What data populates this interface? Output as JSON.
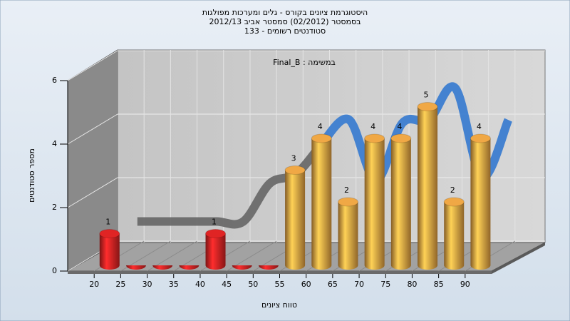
{
  "chart_data": {
    "type": "bar3d",
    "title_lines": [
      "היסטוגרמת ציונים בקורס - גלים ומערכות מפולגות",
      "בסמסטר (02/2012) סמסטר אביב 2012/13",
      "סטודנטים רשומים - 133"
    ],
    "annotation": "במשימה : Final_B",
    "x_label": "טווח ציונים",
    "y_label": "מספר סטודנטים",
    "categories": [
      "20",
      "25",
      "30",
      "35",
      "40",
      "45",
      "50",
      "55",
      "60",
      "65",
      "70",
      "75",
      "80",
      "85",
      "90"
    ],
    "values": [
      1,
      0,
      0,
      0,
      1,
      0,
      0,
      3,
      4,
      2,
      4,
      4,
      5,
      2,
      4
    ],
    "colors": [
      "#e02424",
      "#e02424",
      "#e02424",
      "#e02424",
      "#e02424",
      "#e02424",
      "#e02424",
      "#f0a845",
      "#f0a845",
      "#f0a845",
      "#f0a845",
      "#f0a845",
      "#f0a845",
      "#f0a845",
      "#f0a845"
    ],
    "trend": [
      {
        "color": "#6a6a6a",
        "values": [
          1,
          1,
          1,
          1,
          1,
          2.2,
          2.5,
          3.5,
          null,
          null,
          null,
          null,
          null,
          null,
          null
        ]
      },
      {
        "color": "#3c7dd0",
        "values": [
          null,
          null,
          null,
          null,
          null,
          null,
          null,
          3.5,
          4.2,
          2.3,
          4.1,
          4.2,
          5.2,
          2.4,
          4.2
        ]
      }
    ],
    "ylim": [
      0,
      6
    ],
    "yticks": [
      0,
      2,
      4,
      6
    ],
    "grid": true
  }
}
